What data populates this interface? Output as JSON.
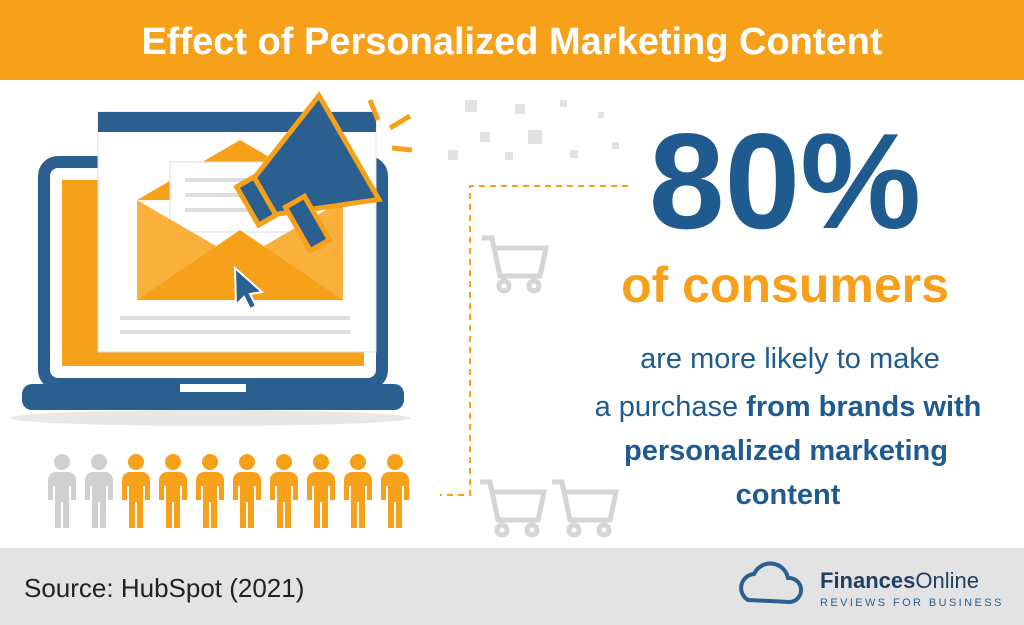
{
  "header": {
    "title": "Effect of Personalized Marketing Content"
  },
  "stat": {
    "value": "80%",
    "subject": "of consumers"
  },
  "description": {
    "line1": "are more likely to make",
    "line2a": "a purchase",
    "line2b": "from brands with",
    "line3": "personalized marketing",
    "line4": "content"
  },
  "footer": {
    "source": "Source: HubSpot (2021)",
    "brand_bold": "Finances",
    "brand_regular": "Online",
    "tagline": "REVIEWS FOR BUSINESS"
  }
}
